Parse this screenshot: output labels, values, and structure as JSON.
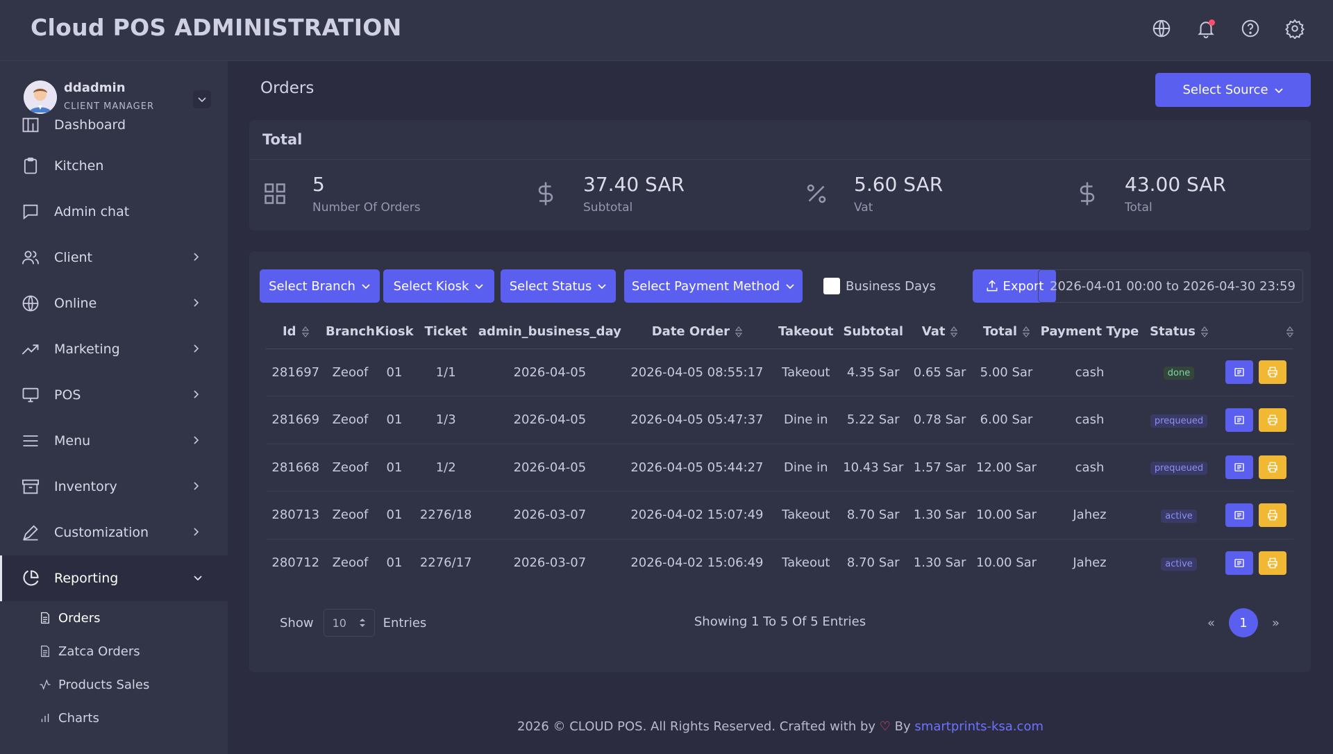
{
  "app": {
    "title": "Cloud POS ADMINISTRATION"
  },
  "topbar_icons": [
    "globe-icon",
    "bell-icon",
    "help-icon",
    "gear-icon"
  ],
  "user": {
    "name": "ddadmin",
    "role": "CLIENT MANAGER"
  },
  "sidebar": {
    "items": [
      {
        "label": "Dashboard",
        "icon": "dashboard-icon",
        "has_children": false
      },
      {
        "label": "Kitchen",
        "icon": "clipboard-icon",
        "has_children": false
      },
      {
        "label": "Admin chat",
        "icon": "chat-icon",
        "has_children": false
      },
      {
        "label": "Client",
        "icon": "users-icon",
        "has_children": true
      },
      {
        "label": "Online",
        "icon": "globe-icon",
        "has_children": true
      },
      {
        "label": "Marketing",
        "icon": "trend-icon",
        "has_children": true
      },
      {
        "label": "POS",
        "icon": "monitor-icon",
        "has_children": true
      },
      {
        "label": "Menu",
        "icon": "menu-icon",
        "has_children": true
      },
      {
        "label": "Inventory",
        "icon": "archive-icon",
        "has_children": true
      },
      {
        "label": "Customization",
        "icon": "pen-icon",
        "has_children": true
      },
      {
        "label": "Reporting",
        "icon": "pie-chart-icon",
        "has_children": true,
        "expanded": true
      }
    ],
    "sub_items": [
      {
        "label": "Orders",
        "icon": "file-icon"
      },
      {
        "label": "Zatca Orders",
        "icon": "file-icon"
      },
      {
        "label": "Products Sales",
        "icon": "activity-icon"
      },
      {
        "label": "Charts",
        "icon": "bar-chart-icon"
      }
    ]
  },
  "page": {
    "title": "Orders",
    "select_source": "Select Source"
  },
  "totals": {
    "heading": "Total",
    "stats": [
      {
        "value": "5",
        "label": "Number Of Orders",
        "icon": "grid-icon"
      },
      {
        "value": "37.40 SAR",
        "label": "Subtotal",
        "icon": "dollar-icon"
      },
      {
        "value": "5.60 SAR",
        "label": "Vat",
        "icon": "percent-icon"
      },
      {
        "value": "43.00 SAR",
        "label": "Total",
        "icon": "dollar-icon"
      }
    ]
  },
  "filters": {
    "branch": "Select Branch",
    "kiosk": "Select Kiosk",
    "status": "Select Status",
    "payment": "Select Payment Method",
    "business_days": "Business Days",
    "export": "Export",
    "date_range": "2026-04-01 00:00 to 2026-04-30 23:59"
  },
  "table": {
    "columns": [
      "Id",
      "Branch",
      "Kiosk",
      "Ticket",
      "admin_business_day",
      "Date Order",
      "Takeout",
      "Subtotal",
      "Vat",
      "Total",
      "Payment Type",
      "Status",
      ""
    ],
    "rows": [
      {
        "id": "281697",
        "branch": "Zeoof",
        "kiosk": "01",
        "ticket": "1/1",
        "business_day": "2026-04-05",
        "date_order": "2026-04-05 08:55:17",
        "takeout": "Takeout",
        "subtotal": "4.35 Sar",
        "vat": "0.65 Sar",
        "total": "5.00 Sar",
        "payment": "cash",
        "status": "done"
      },
      {
        "id": "281669",
        "branch": "Zeoof",
        "kiosk": "01",
        "ticket": "1/3",
        "business_day": "2026-04-05",
        "date_order": "2026-04-05 05:47:37",
        "takeout": "Dine in",
        "subtotal": "5.22 Sar",
        "vat": "0.78 Sar",
        "total": "6.00 Sar",
        "payment": "cash",
        "status": "prequeued"
      },
      {
        "id": "281668",
        "branch": "Zeoof",
        "kiosk": "01",
        "ticket": "1/2",
        "business_day": "2026-04-05",
        "date_order": "2026-04-05 05:44:27",
        "takeout": "Dine in",
        "subtotal": "10.43 Sar",
        "vat": "1.57 Sar",
        "total": "12.00 Sar",
        "payment": "cash",
        "status": "prequeued"
      },
      {
        "id": "280713",
        "branch": "Zeoof",
        "kiosk": "01",
        "ticket": "2276/18",
        "business_day": "2026-03-07",
        "date_order": "2026-04-02 15:07:49",
        "takeout": "Takeout",
        "subtotal": "8.70 Sar",
        "vat": "1.30 Sar",
        "total": "10.00 Sar",
        "payment": "Jahez",
        "status": "active"
      },
      {
        "id": "280712",
        "branch": "Zeoof",
        "kiosk": "01",
        "ticket": "2276/17",
        "business_day": "2026-03-07",
        "date_order": "2026-04-02 15:06:49",
        "takeout": "Takeout",
        "subtotal": "8.70 Sar",
        "vat": "1.30 Sar",
        "total": "10.00 Sar",
        "payment": "Jahez",
        "status": "active"
      }
    ]
  },
  "pagination": {
    "show": "Show",
    "entries_value": "10",
    "entries": "Entries",
    "showing": "Showing 1 To 5 Of 5 Entries",
    "prev": "«",
    "current": "1",
    "next": "»"
  },
  "footer": {
    "text": "2026 © CLOUD POS. All Rights Reserved. Crafted with by",
    "by": "By",
    "link": "smartprints-ksa.com"
  },
  "colors": {
    "accent": "#5a5ff0",
    "print": "#f1b933",
    "done": "#7ed6a4",
    "queued": "#8b8ff5"
  }
}
